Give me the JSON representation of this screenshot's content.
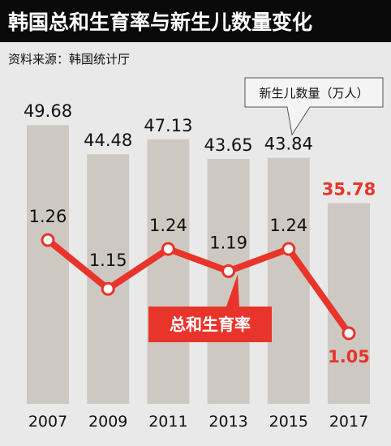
{
  "title": "韩国总和生育率与新生儿数量变化",
  "source": "资料来源：韩国统计厅",
  "colors": {
    "title_bg": "#0a0a0a",
    "background": "#e9e9e9",
    "bar": "#cdc9c2",
    "line": "#e8342a",
    "highlight_text": "#e8342a"
  },
  "chart_data": {
    "type": "bar",
    "categories": [
      "2007",
      "2009",
      "2011",
      "2013",
      "2015",
      "2017"
    ],
    "series": [
      {
        "name": "新生儿数量（万人）",
        "type": "bar",
        "values": [
          49.68,
          44.48,
          47.13,
          43.65,
          43.84,
          35.78
        ],
        "labels": [
          "49.68",
          "44.48",
          "47.13",
          "43.65",
          "43.84",
          "35.78"
        ]
      },
      {
        "name": "总和生育率",
        "type": "line",
        "values": [
          1.26,
          1.15,
          1.24,
          1.19,
          1.24,
          1.05
        ],
        "labels": [
          "1.26",
          "1.15",
          "1.24",
          "1.19",
          "1.24",
          "1.05"
        ]
      }
    ],
    "bar_legend": "新生儿数量（万人）",
    "line_legend": "总和生育率",
    "highlight_category": "2017"
  }
}
